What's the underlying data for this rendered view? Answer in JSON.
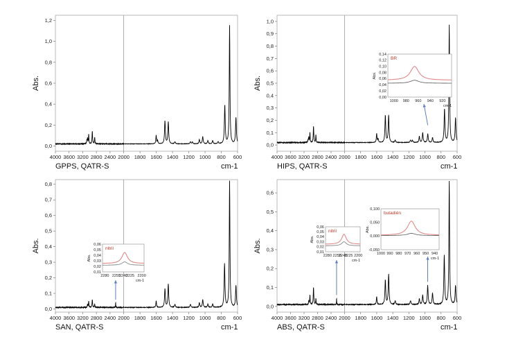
{
  "chart_data": [
    {
      "type": "line",
      "caption": "GPPS, QATR-S",
      "ylabel": "Abs.",
      "xunit": "cm-1",
      "xlim": [
        4000,
        600
      ],
      "ylim": [
        -0.05,
        1.25
      ],
      "x_ticks": [
        4000,
        3600,
        3200,
        2800,
        2400,
        2000,
        1800,
        1600,
        1400,
        1200,
        1000,
        800,
        600
      ],
      "y_ticks": [
        0.0,
        0.2,
        0.4,
        0.6,
        0.8,
        1.0,
        1.2
      ],
      "y_tick_labels": [
        "0,0",
        "0,2",
        "0,4",
        "0,6",
        "0,8",
        "1,0",
        "1,2"
      ],
      "axis_break": 2000,
      "baseline": 0.02,
      "series": [
        {
          "color": "#000000",
          "peaks": [
            [
              3080,
              0.03,
              10
            ],
            [
              3060,
              0.05,
              8
            ],
            [
              3026,
              0.09,
              8
            ],
            [
              2920,
              0.12,
              10
            ],
            [
              2850,
              0.06,
              8
            ],
            [
              1601,
              0.08,
              5
            ],
            [
              1583,
              0.03,
              5
            ],
            [
              1493,
              0.22,
              6
            ],
            [
              1452,
              0.21,
              6
            ],
            [
              1370,
              0.02,
              6
            ],
            [
              1180,
              0.02,
              6
            ],
            [
              1155,
              0.02,
              5
            ],
            [
              1070,
              0.04,
              6
            ],
            [
              1028,
              0.07,
              6
            ],
            [
              965,
              0.03,
              6
            ],
            [
              906,
              0.03,
              6
            ],
            [
              840,
              0.02,
              6
            ],
            [
              757,
              0.37,
              6
            ],
            [
              698,
              1.13,
              5
            ],
            [
              620,
              0.25,
              6
            ]
          ]
        }
      ]
    },
    {
      "type": "line",
      "caption": "HIPS, QATR-S",
      "ylabel": "Abs.",
      "xunit": "cm-1",
      "xlim": [
        4000,
        600
      ],
      "ylim": [
        -0.05,
        1.05
      ],
      "x_ticks": [
        4000,
        3600,
        3200,
        2800,
        2400,
        2000,
        1800,
        1600,
        1400,
        1200,
        1000,
        800,
        600
      ],
      "y_ticks": [
        0.0,
        0.1,
        0.2,
        0.3,
        0.4,
        0.5,
        0.6,
        0.7,
        0.8,
        0.9,
        1.0
      ],
      "y_tick_labels": [
        "0,0",
        "0,1",
        "0,2",
        "0,3",
        "0,4",
        "0,5",
        "0,6",
        "0,7",
        "0,8",
        "0,9",
        "1,0"
      ],
      "axis_break": 2000,
      "baseline": 0.02,
      "series": [
        {
          "color": "#000000",
          "peaks": [
            [
              3080,
              0.02,
              10
            ],
            [
              3060,
              0.04,
              8
            ],
            [
              3026,
              0.08,
              8
            ],
            [
              2920,
              0.13,
              10
            ],
            [
              2850,
              0.06,
              8
            ],
            [
              1601,
              0.07,
              5
            ],
            [
              1583,
              0.03,
              5
            ],
            [
              1493,
              0.22,
              6
            ],
            [
              1452,
              0.22,
              6
            ],
            [
              1370,
              0.02,
              6
            ],
            [
              1180,
              0.02,
              6
            ],
            [
              1155,
              0.02,
              5
            ],
            [
              1070,
              0.05,
              6
            ],
            [
              1028,
              0.08,
              6
            ],
            [
              965,
              0.07,
              6
            ],
            [
              906,
              0.04,
              6
            ],
            [
              757,
              0.27,
              6
            ],
            [
              698,
              0.95,
              5
            ],
            [
              620,
              0.2,
              6
            ]
          ]
        }
      ],
      "inset": {
        "label": "BR",
        "ylabel": "Abs.",
        "xunit": "cm-1",
        "xlim": [
          1010,
          905
        ],
        "ylim": [
          0.0,
          0.14
        ],
        "x_ticks": [
          1000,
          980,
          960,
          940,
          920
        ],
        "y_ticks": [
          0.0,
          0.02,
          0.04,
          0.06,
          0.08,
          0.1,
          0.12,
          0.14
        ],
        "y_tick_labels": [
          "0,00",
          "0,02",
          "0,04",
          "0,06",
          "0,08",
          "0,10",
          "0,12",
          "0,14"
        ],
        "highlight_color": "#e08a8a",
        "highlight_peak": [
          966,
          0.1
        ],
        "highlight_base": 0.055,
        "reference_color": "#555555",
        "reference_peak": [
          966,
          0.055
        ],
        "reference_base": 0.045
      }
    },
    {
      "type": "line",
      "caption": "SAN, QATR-S",
      "ylabel": "Abs.",
      "xunit": "cm-1",
      "xlim": [
        4000,
        600
      ],
      "ylim": [
        -0.02,
        0.83
      ],
      "x_ticks": [
        4000,
        3600,
        3200,
        2800,
        2400,
        2000,
        1800,
        1600,
        1400,
        1200,
        1000,
        800,
        600
      ],
      "y_ticks": [
        0.0,
        0.1,
        0.2,
        0.3,
        0.4,
        0.5,
        0.6,
        0.7,
        0.8
      ],
      "y_tick_labels": [
        "0,0",
        "0,1",
        "0,2",
        "0,3",
        "0,4",
        "0,5",
        "0,6",
        "0,7",
        "0,8"
      ],
      "axis_break": 2000,
      "baseline": 0.01,
      "series": [
        {
          "color": "#000000",
          "peaks": [
            [
              3060,
              0.02,
              8
            ],
            [
              3026,
              0.04,
              8
            ],
            [
              2920,
              0.05,
              10
            ],
            [
              2850,
              0.02,
              8
            ],
            [
              2237,
              0.03,
              5
            ],
            [
              1601,
              0.04,
              5
            ],
            [
              1493,
              0.12,
              6
            ],
            [
              1452,
              0.15,
              6
            ],
            [
              1370,
              0.02,
              6
            ],
            [
              1180,
              0.02,
              6
            ],
            [
              1070,
              0.03,
              6
            ],
            [
              1028,
              0.05,
              6
            ],
            [
              965,
              0.02,
              6
            ],
            [
              906,
              0.02,
              6
            ],
            [
              760,
              0.28,
              6
            ],
            [
              698,
              0.81,
              5
            ],
            [
              620,
              0.14,
              6
            ]
          ]
        }
      ],
      "inset": {
        "label": "nitril",
        "ylabel": "Abs.",
        "xunit": "cm-1",
        "xlim": [
          2285,
          2195
        ],
        "ylim": [
          0.01,
          0.06
        ],
        "x_ticks": [
          2280,
          2255,
          2240,
          2225,
          2200
        ],
        "x_tick_labels": [
          "2280",
          "2255",
          "2240",
          "2225",
          "2200"
        ],
        "y_ticks": [
          0.01,
          0.02,
          0.03,
          0.04,
          0.05,
          0.06
        ],
        "y_tick_labels": [
          "0,01",
          "0,02",
          "0,03",
          "0,04",
          "0,05",
          "0,06"
        ],
        "highlight_color": "#e08a8a",
        "highlight_peak": [
          2237,
          0.045
        ],
        "highlight_base": 0.025,
        "reference_color": "#777777",
        "reference_peak": [
          2237,
          0.028
        ],
        "reference_base": 0.022
      }
    },
    {
      "type": "line",
      "caption": "ABS, QATR-S",
      "ylabel": "Abs.",
      "xunit": "cm-1",
      "xlim": [
        4000,
        600
      ],
      "ylim": [
        -0.03,
        0.67
      ],
      "x_ticks": [
        4000,
        3600,
        3200,
        2800,
        2400,
        2000,
        1800,
        1600,
        1400,
        1200,
        1000,
        800,
        600
      ],
      "y_ticks": [
        0.0,
        0.1,
        0.2,
        0.3,
        0.4,
        0.5,
        0.6
      ],
      "y_tick_labels": [
        "0,0",
        "0,1",
        "0,2",
        "0,3",
        "0,4",
        "0,5",
        "0,6"
      ],
      "axis_break": 2000,
      "baseline": 0.01,
      "series": [
        {
          "color": "#000000",
          "peaks": [
            [
              3060,
              0.02,
              8
            ],
            [
              3026,
              0.05,
              8
            ],
            [
              2920,
              0.09,
              10
            ],
            [
              2850,
              0.03,
              8
            ],
            [
              2237,
              0.03,
              5
            ],
            [
              1601,
              0.04,
              5
            ],
            [
              1493,
              0.13,
              6
            ],
            [
              1452,
              0.16,
              6
            ],
            [
              1370,
              0.02,
              6
            ],
            [
              1180,
              0.02,
              6
            ],
            [
              1070,
              0.03,
              6
            ],
            [
              1028,
              0.05,
              6
            ],
            [
              966,
              0.1,
              6
            ],
            [
              906,
              0.06,
              6
            ],
            [
              760,
              0.26,
              6
            ],
            [
              698,
              0.65,
              5
            ],
            [
              620,
              0.1,
              6
            ]
          ]
        }
      ],
      "inset": {
        "label": "butadién",
        "ylabel": "Abs.",
        "xunit": "cm-1",
        "xlim": [
          1000,
          935
        ],
        "ylim": [
          -0.05,
          0.1
        ],
        "x_ticks": [
          1000,
          990,
          980,
          970,
          960,
          950,
          940
        ],
        "y_ticks": [
          -0.05,
          0.0,
          0.05,
          0.1
        ],
        "y_tick_labels": [
          "-0,050",
          "0,000",
          "0,050",
          "0,100"
        ],
        "highlight_color": "#e08a8a",
        "highlight_peak": [
          966,
          0.055
        ],
        "highlight_base": 0.003,
        "reference_color": "#555555",
        "reference_peak": [
          966,
          0.01
        ],
        "reference_base": 0.002
      },
      "inset2": {
        "label": "nitril",
        "ylabel": "Abs.",
        "xunit": "cm-1",
        "xlim": [
          2285,
          2195
        ],
        "ylim": [
          0.01,
          0.06
        ],
        "x_ticks": [
          2280,
          2255,
          2240,
          2225,
          2200
        ],
        "x_tick_labels": [
          "2280",
          "2255",
          "2240",
          "2225",
          "2200"
        ],
        "y_ticks": [
          0.01,
          0.02,
          0.03,
          0.04,
          0.05,
          0.06
        ],
        "y_tick_labels": [
          "0,01",
          "0,02",
          "0,03",
          "0,04",
          "0,05",
          "0,06"
        ],
        "highlight_color": "#e08a8a",
        "highlight_peak": [
          2237,
          0.045
        ],
        "highlight_base": 0.025,
        "reference_color": "#777777",
        "reference_peak": [
          2237,
          0.03
        ],
        "reference_base": 0.022
      }
    }
  ]
}
